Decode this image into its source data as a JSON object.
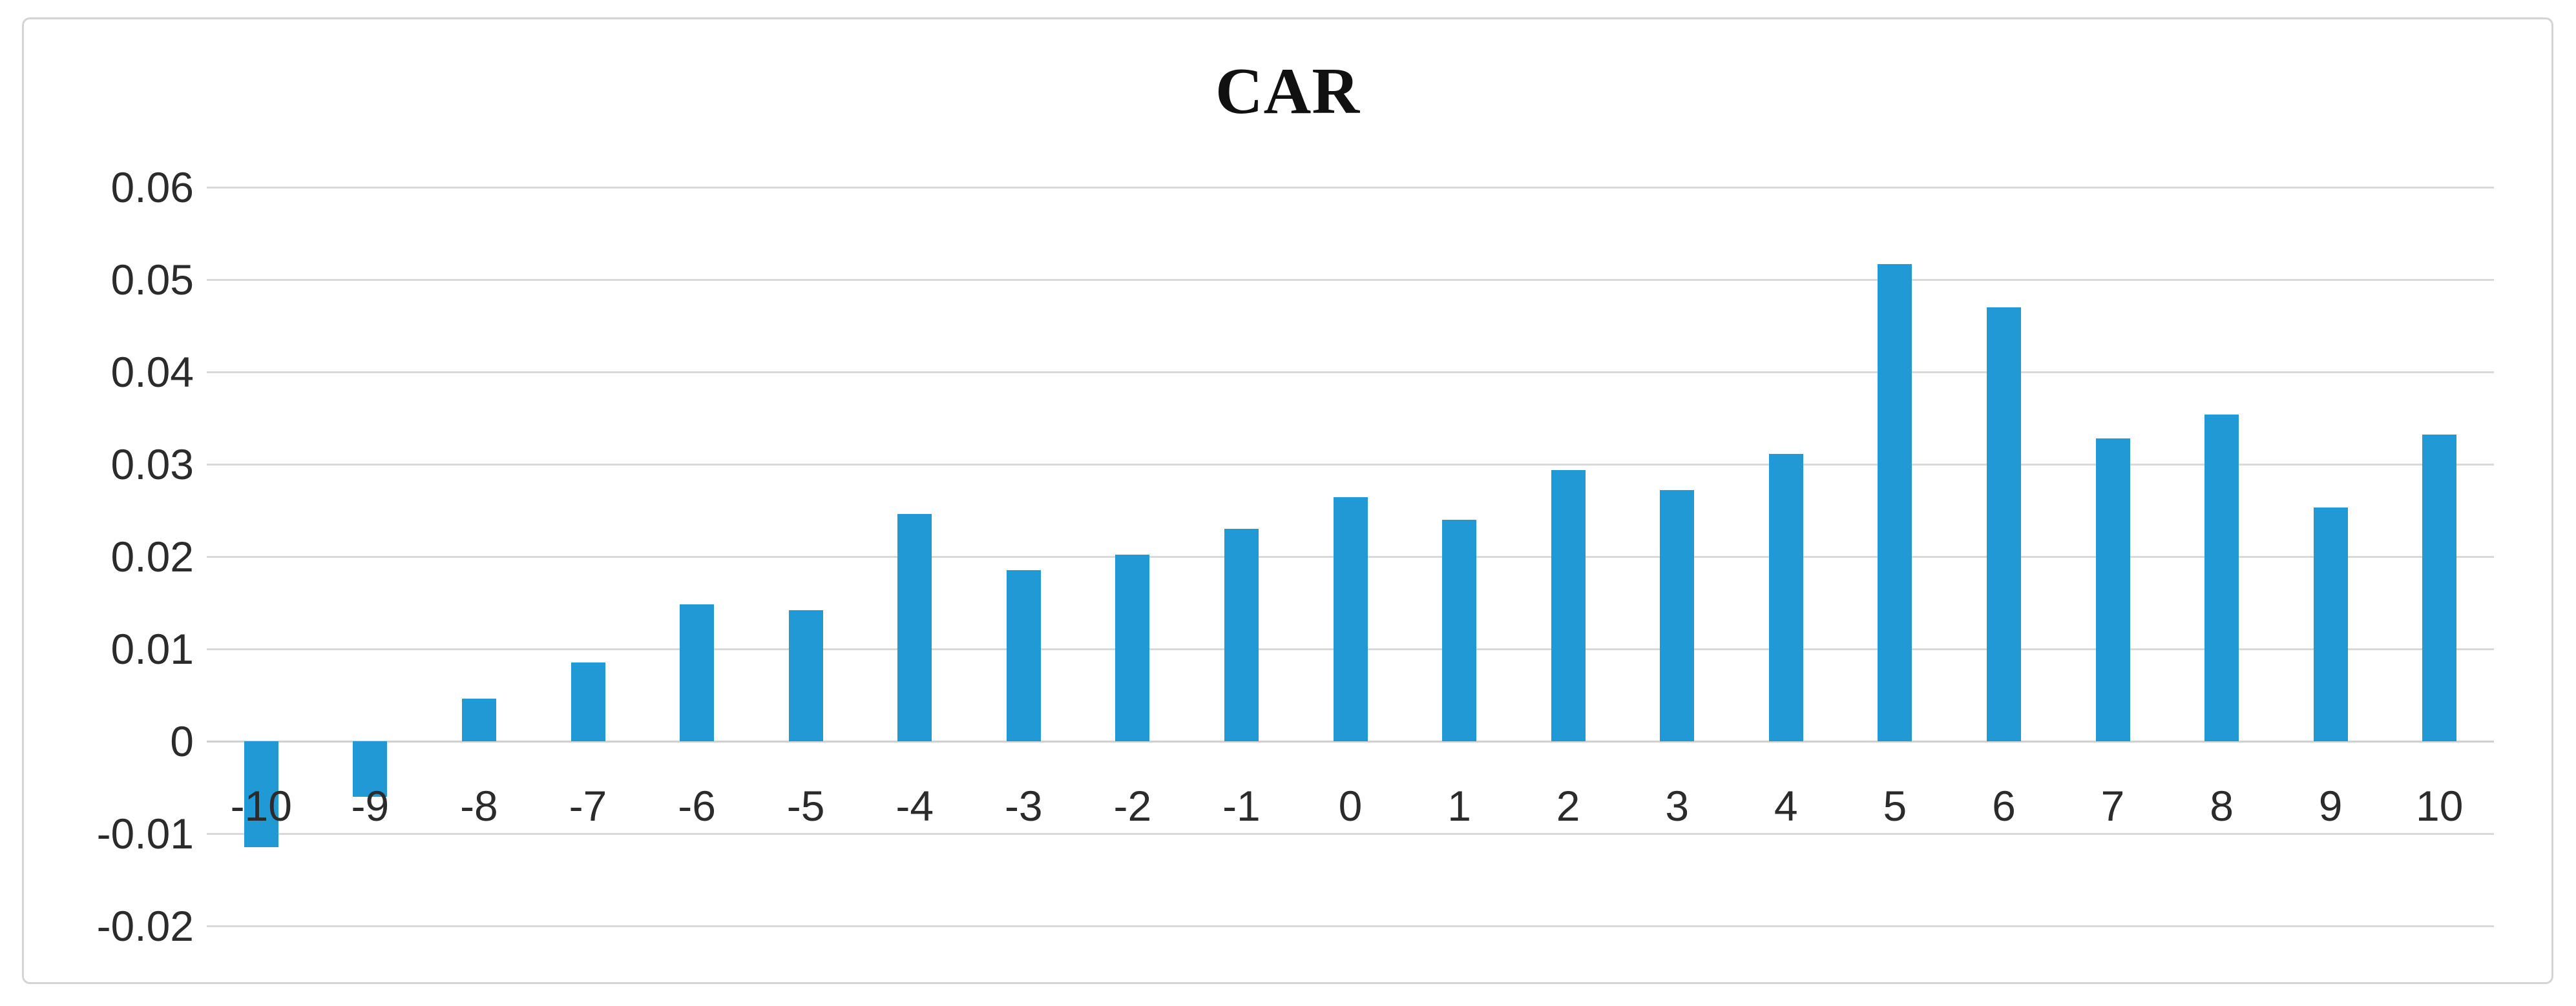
{
  "figure": {
    "background_color": "#FFFFFF",
    "frame_border_color": "#D4D4D4"
  },
  "chart_data": {
    "type": "bar",
    "title": "CAR",
    "categories": [
      "-10",
      "-9",
      "-8",
      "-7",
      "-6",
      "-5",
      "-4",
      "-3",
      "-2",
      "-1",
      "0",
      "1",
      "2",
      "3",
      "4",
      "5",
      "6",
      "7",
      "8",
      "9",
      "10"
    ],
    "values": [
      -0.0115,
      -0.006,
      0.0046,
      0.0085,
      0.0148,
      0.0142,
      0.0246,
      0.0185,
      0.0202,
      0.023,
      0.0264,
      0.024,
      0.0294,
      0.0272,
      0.0311,
      0.0517,
      0.047,
      0.0328,
      0.0354,
      0.0253,
      0.0332
    ],
    "xlabel": "",
    "ylabel": "",
    "ylim": [
      -0.02,
      0.06
    ],
    "ytick_step": 0.01,
    "ytick_labels": [
      "0.06",
      "0.05",
      "0.04",
      "0.03",
      "0.02",
      "0.01",
      "0",
      "-0.01",
      "-0.02"
    ],
    "grid": true,
    "legend_position": "none",
    "bar_color": "#2199D5",
    "gridline_color": "#D9D9D9",
    "zero_line_color": "#D0D0D0",
    "axis_text_color": "#2B2B2B",
    "title_color": "#111111"
  }
}
